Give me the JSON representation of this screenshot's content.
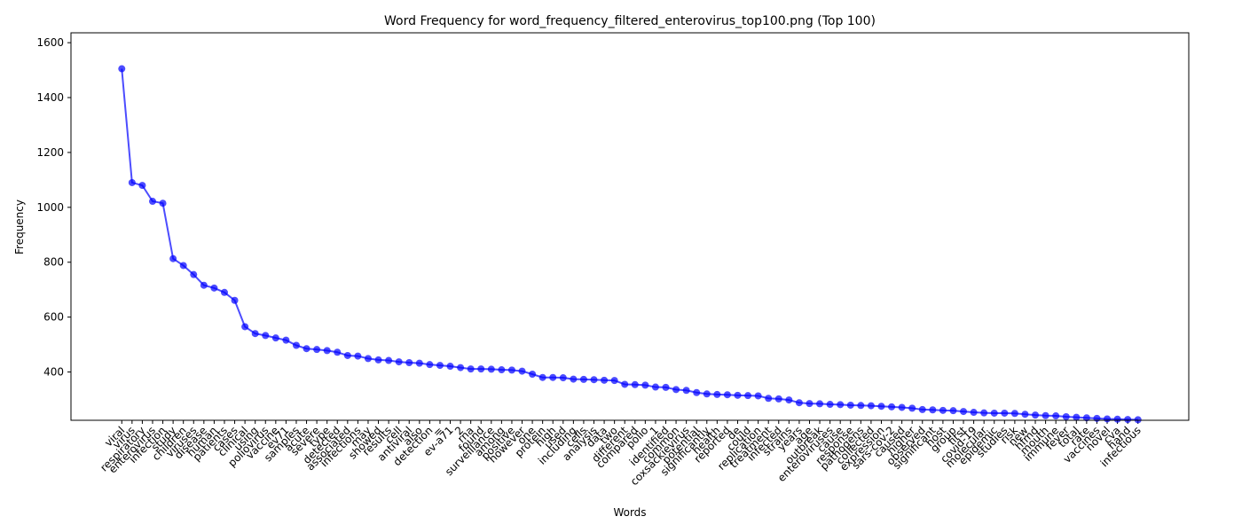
{
  "chart_data": {
    "type": "line",
    "title": "Word Frequency for word_frequency_filtered_enterovirus_top100.png (Top 100)",
    "xlabel": "Words",
    "ylabel": "Frequency",
    "categories": [
      "viral",
      "virus",
      "respiratory",
      "enterovirus",
      "infection",
      "study",
      "children",
      "viruses",
      "disease",
      "human",
      "patients",
      "cases",
      "clinical",
      "using",
      "poliovirus",
      "vaccine",
      "ev71",
      "samples",
      "acute",
      "severe",
      "type",
      "detected",
      "associated",
      "infections",
      "may",
      "showed",
      "results",
      "cell",
      "antiviral",
      "also",
      "detection",
      "=",
      "ev-a71",
      "2",
      "rna",
      "found",
      "surveillance",
      "among",
      "positive",
      "however",
      "one",
      "protein",
      "high",
      "used",
      "including",
      "cells",
      "analysis",
      "data",
      "two",
      "different",
      "compared",
      "polio",
      "1",
      "identified",
      "common",
      "coxsackievirus",
      "potential",
      "significantly",
      "health",
      "reported",
      "de",
      "could",
      "replication",
      "treatment",
      "infected",
      "strains",
      "years",
      "age",
      "outbreak",
      "enteroviruses",
      "cause",
      "response",
      "pathogens",
      "collected",
      "expression",
      "sars-cov-2",
      "caused",
      "higher",
      "observed",
      "significant",
      "host",
      "group",
      "first",
      "covid-19",
      "molecular",
      "epidemic",
      "studies",
      "risk",
      "new",
      "hfmd",
      "mouth",
      "immune",
      "fever",
      "total",
      "rate",
      "vaccines",
      "novel",
      "cva",
      "hand",
      "infectious"
    ],
    "values": [
      1505,
      1090,
      1080,
      1022,
      1015,
      813,
      788,
      755,
      716,
      706,
      690,
      661,
      565,
      540,
      533,
      524,
      516,
      497,
      485,
      482,
      478,
      472,
      460,
      458,
      449,
      444,
      442,
      437,
      434,
      432,
      427,
      424,
      421,
      416,
      411,
      411,
      410,
      408,
      407,
      403,
      392,
      380,
      380,
      379,
      374,
      373,
      372,
      370,
      369,
      355,
      354,
      352,
      345,
      344,
      336,
      333,
      325,
      320,
      318,
      317,
      315,
      314,
      313,
      304,
      302,
      298,
      288,
      285,
      284,
      282,
      281,
      279,
      278,
      277,
      275,
      273,
      271,
      268,
      263,
      262,
      260,
      259,
      256,
      253,
      251,
      250,
      250,
      249,
      246,
      243,
      241,
      240,
      237,
      235,
      233,
      231,
      229,
      228,
      227,
      226
    ],
    "color": "#0000ff",
    "ylim": [
      224,
      1636
    ],
    "yticks": [
      400,
      600,
      800,
      1000,
      1200,
      1400,
      1600
    ]
  }
}
